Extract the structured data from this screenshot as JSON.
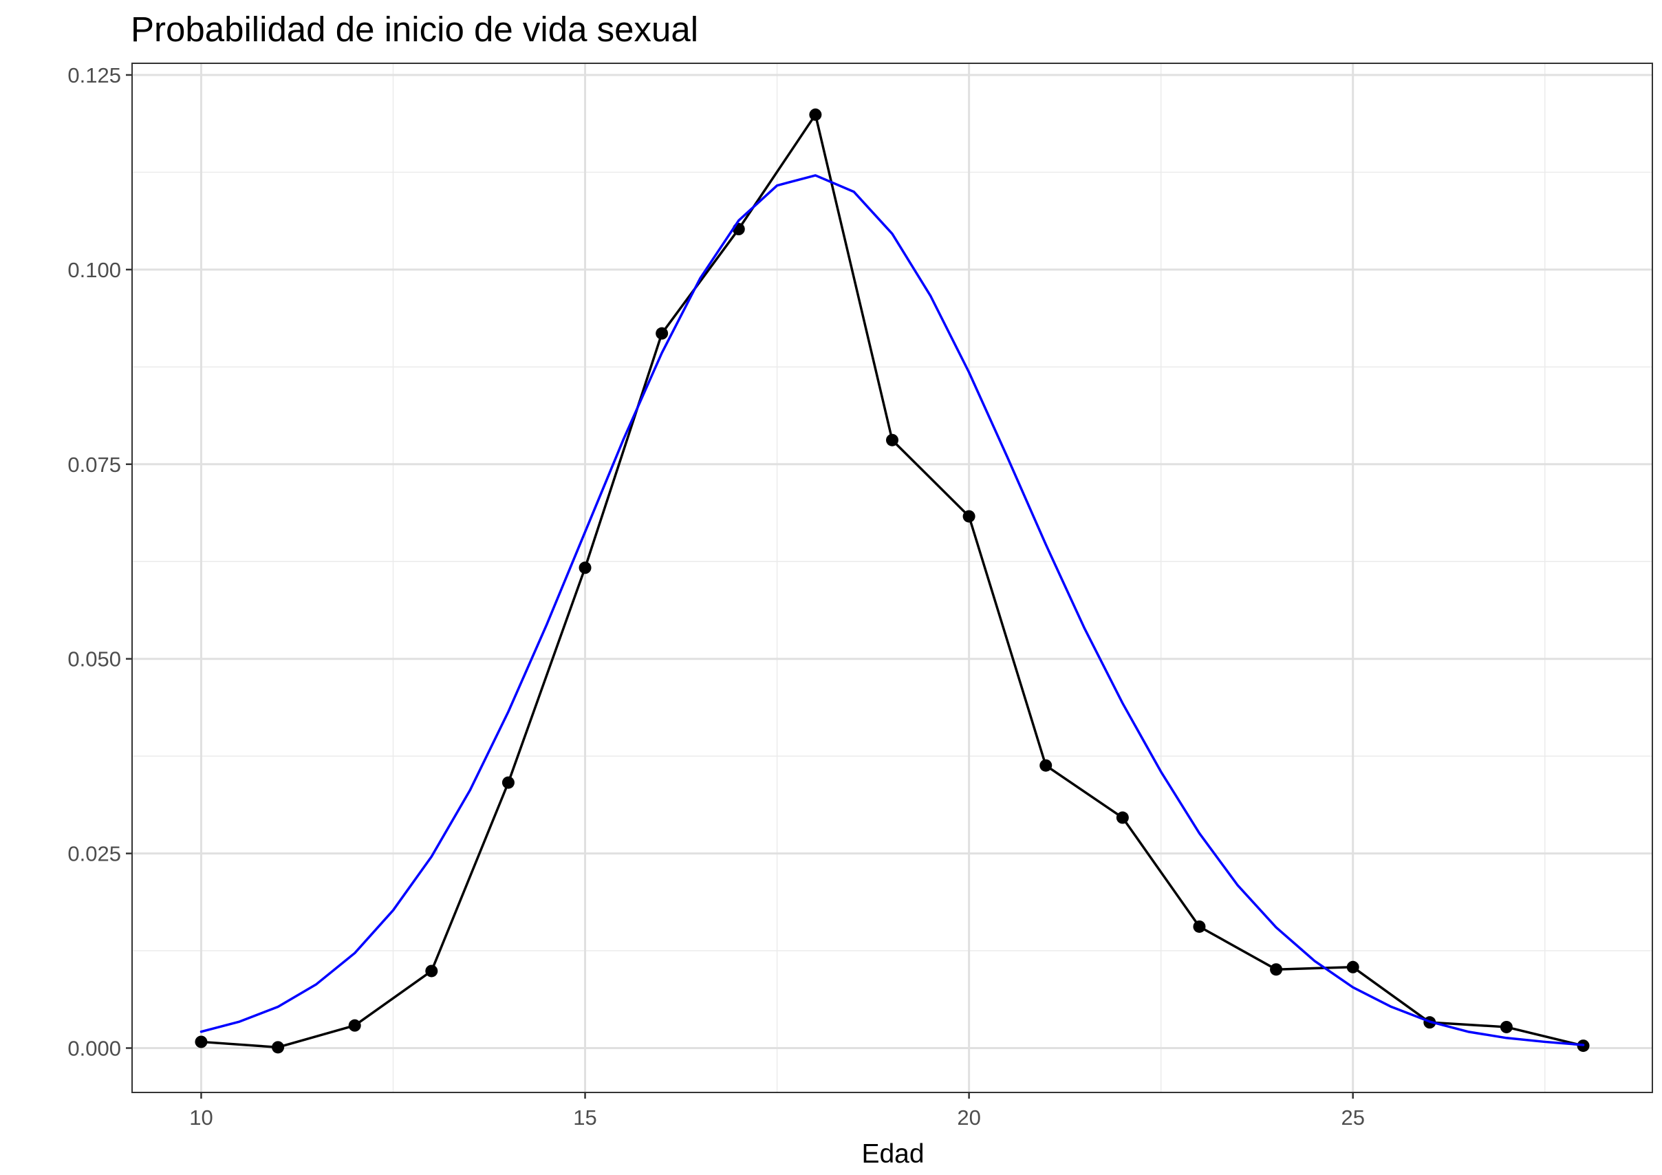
{
  "chart_data": {
    "type": "line",
    "title": "Probabilidad de inicio de vida sexual",
    "xlabel": "Edad",
    "ylabel": "",
    "xlim": [
      9.1,
      28.9
    ],
    "ylim": [
      -0.0057,
      0.1265
    ],
    "x_ticks": [
      10,
      15,
      20,
      25
    ],
    "x_tick_labels": [
      "10",
      "15",
      "20",
      "25"
    ],
    "x_minor_ticks": [
      12.5,
      17.5,
      22.5,
      27.5
    ],
    "y_ticks": [
      0,
      0.025,
      0.05,
      0.075,
      0.1,
      0.125
    ],
    "y_tick_labels": [
      "0.000",
      "0.025",
      "0.050",
      "0.075",
      "0.100",
      "0.125"
    ],
    "y_minor_ticks": [
      0.0125,
      0.0375,
      0.0625,
      0.0875,
      0.1125
    ],
    "grid": true,
    "series": [
      {
        "kind": "line+points",
        "color": "#000000",
        "x": [
          10,
          11,
          12,
          13,
          14,
          15,
          16,
          17,
          18,
          19,
          20,
          21,
          22,
          23,
          24,
          25,
          26,
          27,
          28
        ],
        "values": [
          0.0008,
          0.0001,
          0.0029,
          0.0099,
          0.0341,
          0.0617,
          0.0918,
          0.1052,
          0.1199,
          0.0781,
          0.0683,
          0.0363,
          0.0296,
          0.0156,
          0.0101,
          0.0104,
          0.0033,
          0.0027,
          0.0003
        ]
      },
      {
        "kind": "smooth-curve",
        "color": "#0000ff",
        "x": [
          10,
          10.5,
          11,
          11.5,
          12,
          12.5,
          13,
          13.5,
          14,
          14.5,
          15,
          15.5,
          16,
          16.5,
          17,
          17.5,
          18,
          18.5,
          19,
          19.5,
          20,
          20.5,
          21,
          21.5,
          22,
          22.5,
          23,
          23.5,
          24,
          24.5,
          25,
          25.5,
          26,
          26.5,
          27,
          27.5,
          28
        ],
        "values": [
          0.0021,
          0.0034,
          0.0053,
          0.0082,
          0.0122,
          0.0177,
          0.0246,
          0.0331,
          0.0432,
          0.0544,
          0.0663,
          0.0782,
          0.0893,
          0.0989,
          0.1063,
          0.1108,
          0.1121,
          0.11,
          0.1046,
          0.0966,
          0.0868,
          0.0759,
          0.0647,
          0.054,
          0.0443,
          0.0355,
          0.0276,
          0.0209,
          0.0155,
          0.0112,
          0.0078,
          0.0053,
          0.0034,
          0.0021,
          0.0013,
          0.0008,
          0.0004
        ]
      }
    ]
  }
}
